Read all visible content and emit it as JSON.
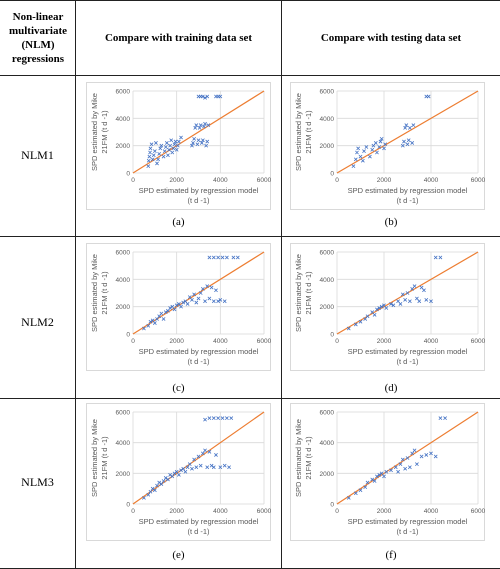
{
  "header": {
    "col1": "Non-linear multivariate (NLM) regressions",
    "col2": "Compare with training data set",
    "col3": "Compare with testing data set"
  },
  "rows": [
    {
      "label": "NLM1"
    },
    {
      "label": "NLM2"
    },
    {
      "label": "NLM3"
    }
  ],
  "colors": {
    "points": "#4472C4",
    "line": "#ED7D31",
    "grid": "#d9d9d9"
  },
  "chart_data": [
    {
      "id": "a",
      "type": "scatter",
      "caption": "(a)",
      "xlabel": "SPD estimated by regression model",
      "xunit": "(t d -1)",
      "ylabel": "SPD estimated by Mike",
      "ylabel2": "21FM (t d -1)",
      "xlim": [
        0,
        6000
      ],
      "ylim": [
        0,
        6000
      ],
      "xticks": [
        "0",
        "2000",
        "4000",
        "6000"
      ],
      "yticks": [
        "0",
        "2000",
        "4000",
        "6000"
      ],
      "reference_line": [
        [
          0,
          0
        ],
        [
          6000,
          6000
        ]
      ],
      "points": [
        [
          700,
          500
        ],
        [
          720,
          900
        ],
        [
          750,
          1200
        ],
        [
          780,
          1500
        ],
        [
          800,
          1800
        ],
        [
          850,
          2100
        ],
        [
          900,
          1000
        ],
        [
          950,
          1300
        ],
        [
          1000,
          1600
        ],
        [
          1050,
          2200
        ],
        [
          1100,
          700
        ],
        [
          1150,
          1000
        ],
        [
          1200,
          1400
        ],
        [
          1250,
          1800
        ],
        [
          1300,
          2000
        ],
        [
          1400,
          1200
        ],
        [
          1450,
          1600
        ],
        [
          1500,
          1900
        ],
        [
          1550,
          2200
        ],
        [
          1600,
          1300
        ],
        [
          1650,
          1700
        ],
        [
          1700,
          2000
        ],
        [
          1750,
          2400
        ],
        [
          1800,
          1500
        ],
        [
          1850,
          1800
        ],
        [
          1900,
          2100
        ],
        [
          1950,
          2300
        ],
        [
          2000,
          1700
        ],
        [
          2050,
          2000
        ],
        [
          2100,
          2300
        ],
        [
          2200,
          2600
        ],
        [
          2700,
          2000
        ],
        [
          2750,
          2200
        ],
        [
          2800,
          2500
        ],
        [
          2850,
          3300
        ],
        [
          2900,
          3500
        ],
        [
          2950,
          2100
        ],
        [
          3000,
          2400
        ],
        [
          3050,
          3300
        ],
        [
          3100,
          3500
        ],
        [
          3150,
          2200
        ],
        [
          3200,
          2400
        ],
        [
          3250,
          3400
        ],
        [
          3300,
          3600
        ],
        [
          3350,
          2000
        ],
        [
          3400,
          2300
        ],
        [
          3450,
          3500
        ],
        [
          3000,
          5600
        ],
        [
          3100,
          5600
        ],
        [
          3200,
          5600
        ],
        [
          3300,
          5500
        ],
        [
          3400,
          5600
        ],
        [
          3800,
          5600
        ],
        [
          3900,
          5600
        ],
        [
          4000,
          5600
        ]
      ]
    },
    {
      "id": "b",
      "type": "scatter",
      "caption": "(b)",
      "xlabel": "SPD estimated by regression model",
      "xunit": "(t d -1)",
      "ylabel": "SPD estimated by Mike",
      "ylabel2": "21FM (t d -1)",
      "xlim": [
        0,
        6000
      ],
      "ylim": [
        0,
        6000
      ],
      "xticks": [
        "0",
        "2000",
        "4000",
        "6000"
      ],
      "yticks": [
        "0",
        "2000",
        "4000",
        "6000"
      ],
      "reference_line": [
        [
          0,
          0
        ],
        [
          6000,
          6000
        ]
      ],
      "points": [
        [
          700,
          500
        ],
        [
          800,
          1000
        ],
        [
          850,
          1500
        ],
        [
          900,
          1800
        ],
        [
          1000,
          1200
        ],
        [
          1100,
          900
        ],
        [
          1150,
          1600
        ],
        [
          1250,
          1900
        ],
        [
          1400,
          1200
        ],
        [
          1500,
          1700
        ],
        [
          1550,
          2000
        ],
        [
          1650,
          2200
        ],
        [
          1700,
          1500
        ],
        [
          1800,
          1900
        ],
        [
          1850,
          2300
        ],
        [
          1900,
          2500
        ],
        [
          2000,
          1800
        ],
        [
          2050,
          2100
        ],
        [
          2800,
          2000
        ],
        [
          2850,
          2300
        ],
        [
          2900,
          3300
        ],
        [
          2950,
          3500
        ],
        [
          3000,
          2100
        ],
        [
          3050,
          2400
        ],
        [
          3100,
          3300
        ],
        [
          3200,
          2200
        ],
        [
          3250,
          3500
        ],
        [
          3800,
          5600
        ],
        [
          3900,
          5600
        ]
      ]
    },
    {
      "id": "c",
      "type": "scatter",
      "caption": "(c)",
      "xlabel": "SPD estimated by regression model",
      "xunit": "(t d -1)",
      "ylabel": "SPD estimated by Mike",
      "ylabel2": "21FM (t d -1)",
      "xlim": [
        0,
        6000
      ],
      "ylim": [
        0,
        6000
      ],
      "xticks": [
        "0",
        "2000",
        "4000",
        "6000"
      ],
      "yticks": [
        "0",
        "2000",
        "4000",
        "6000"
      ],
      "reference_line": [
        [
          0,
          0
        ],
        [
          6000,
          6000
        ]
      ],
      "points": [
        [
          500,
          400
        ],
        [
          700,
          600
        ],
        [
          800,
          900
        ],
        [
          900,
          1000
        ],
        [
          1000,
          800
        ],
        [
          1100,
          1100
        ],
        [
          1200,
          1300
        ],
        [
          1300,
          1500
        ],
        [
          1400,
          1100
        ],
        [
          1500,
          1600
        ],
        [
          1600,
          1700
        ],
        [
          1700,
          1900
        ],
        [
          1800,
          2000
        ],
        [
          1900,
          1800
        ],
        [
          2000,
          2100
        ],
        [
          2100,
          2200
        ],
        [
          2200,
          2000
        ],
        [
          2300,
          2300
        ],
        [
          2400,
          2400
        ],
        [
          2500,
          2200
        ],
        [
          2600,
          2700
        ],
        [
          2700,
          2500
        ],
        [
          2800,
          2900
        ],
        [
          2900,
          2300
        ],
        [
          3000,
          2600
        ],
        [
          3100,
          3000
        ],
        [
          3200,
          3300
        ],
        [
          3300,
          2400
        ],
        [
          3400,
          3500
        ],
        [
          3500,
          2600
        ],
        [
          3600,
          3400
        ],
        [
          3700,
          2400
        ],
        [
          3800,
          3200
        ],
        [
          3900,
          2400
        ],
        [
          4000,
          2500
        ],
        [
          4200,
          2400
        ],
        [
          3500,
          5600
        ],
        [
          3700,
          5600
        ],
        [
          3900,
          5600
        ],
        [
          4100,
          5600
        ],
        [
          4300,
          5600
        ],
        [
          4600,
          5600
        ],
        [
          4800,
          5600
        ]
      ]
    },
    {
      "id": "d",
      "type": "scatter",
      "caption": "(d)",
      "xlabel": "SPD estimated by regression model",
      "xunit": "(t d -1)",
      "ylabel": "SPD estimated by Mike",
      "ylabel2": "21FM (t d -1)",
      "xlim": [
        0,
        6000
      ],
      "ylim": [
        0,
        6000
      ],
      "xticks": [
        "0",
        "2000",
        "4000",
        "6000"
      ],
      "yticks": [
        "0",
        "2000",
        "4000",
        "6000"
      ],
      "reference_line": [
        [
          0,
          0
        ],
        [
          6000,
          6000
        ]
      ],
      "points": [
        [
          500,
          400
        ],
        [
          800,
          700
        ],
        [
          1000,
          900
        ],
        [
          1200,
          1100
        ],
        [
          1300,
          1300
        ],
        [
          1500,
          1600
        ],
        [
          1600,
          1400
        ],
        [
          1700,
          1800
        ],
        [
          1800,
          1900
        ],
        [
          1900,
          2000
        ],
        [
          2000,
          2100
        ],
        [
          2100,
          1900
        ],
        [
          2300,
          2200
        ],
        [
          2400,
          2100
        ],
        [
          2600,
          2400
        ],
        [
          2700,
          2200
        ],
        [
          2800,
          2900
        ],
        [
          2900,
          2500
        ],
        [
          3000,
          3000
        ],
        [
          3100,
          2400
        ],
        [
          3200,
          3300
        ],
        [
          3300,
          3500
        ],
        [
          3400,
          2600
        ],
        [
          3500,
          2400
        ],
        [
          3600,
          3400
        ],
        [
          3700,
          3200
        ],
        [
          3800,
          2500
        ],
        [
          4000,
          2400
        ],
        [
          4200,
          5600
        ],
        [
          4400,
          5600
        ]
      ]
    },
    {
      "id": "e",
      "type": "scatter",
      "caption": "(e)",
      "xlabel": "SPD estimated by regression model",
      "xunit": "(t d -1)",
      "ylabel": "SPD estimated by Mike",
      "ylabel2": "21FM (t d -1)",
      "xlim": [
        0,
        6000
      ],
      "ylim": [
        0,
        6000
      ],
      "xticks": [
        "0",
        "2000",
        "4000",
        "6000"
      ],
      "yticks": [
        "0",
        "2000",
        "4000",
        "6000"
      ],
      "reference_line": [
        [
          0,
          0
        ],
        [
          6000,
          6000
        ]
      ],
      "points": [
        [
          500,
          400
        ],
        [
          700,
          600
        ],
        [
          800,
          800
        ],
        [
          900,
          1000
        ],
        [
          1000,
          900
        ],
        [
          1100,
          1200
        ],
        [
          1200,
          1400
        ],
        [
          1300,
          1300
        ],
        [
          1400,
          1500
        ],
        [
          1500,
          1700
        ],
        [
          1600,
          1600
        ],
        [
          1700,
          1900
        ],
        [
          1800,
          1800
        ],
        [
          1900,
          2000
        ],
        [
          2000,
          2100
        ],
        [
          2100,
          1900
        ],
        [
          2200,
          2200
        ],
        [
          2300,
          2300
        ],
        [
          2400,
          2100
        ],
        [
          2500,
          2400
        ],
        [
          2600,
          2600
        ],
        [
          2700,
          2300
        ],
        [
          2800,
          2900
        ],
        [
          2900,
          2400
        ],
        [
          3000,
          3100
        ],
        [
          3100,
          2500
        ],
        [
          3200,
          3300
        ],
        [
          3300,
          3500
        ],
        [
          3400,
          2400
        ],
        [
          3500,
          3400
        ],
        [
          3600,
          2500
        ],
        [
          3700,
          2400
        ],
        [
          3800,
          3200
        ],
        [
          4000,
          2400
        ],
        [
          4200,
          2500
        ],
        [
          4400,
          2400
        ],
        [
          3300,
          5500
        ],
        [
          3500,
          5600
        ],
        [
          3700,
          5600
        ],
        [
          3900,
          5600
        ],
        [
          4100,
          5600
        ],
        [
          4300,
          5600
        ],
        [
          4500,
          5600
        ]
      ]
    },
    {
      "id": "f",
      "type": "scatter",
      "caption": "(f)",
      "xlabel": "SPD estimated by regression model",
      "xunit": "(t d -1)",
      "ylabel": "SPD estimated by Mike",
      "ylabel2": "21FM (t d -1)",
      "xlim": [
        0,
        6000
      ],
      "ylim": [
        0,
        6000
      ],
      "xticks": [
        "0",
        "2000",
        "4000",
        "6000"
      ],
      "yticks": [
        "0",
        "2000",
        "4000",
        "6000"
      ],
      "reference_line": [
        [
          0,
          0
        ],
        [
          6000,
          6000
        ]
      ],
      "points": [
        [
          500,
          400
        ],
        [
          800,
          700
        ],
        [
          1000,
          900
        ],
        [
          1200,
          1100
        ],
        [
          1300,
          1400
        ],
        [
          1500,
          1600
        ],
        [
          1600,
          1500
        ],
        [
          1700,
          1800
        ],
        [
          1800,
          1900
        ],
        [
          1900,
          2000
        ],
        [
          2000,
          1800
        ],
        [
          2100,
          2100
        ],
        [
          2300,
          2200
        ],
        [
          2500,
          2400
        ],
        [
          2600,
          2100
        ],
        [
          2700,
          2600
        ],
        [
          2800,
          2900
        ],
        [
          2900,
          2300
        ],
        [
          3000,
          3000
        ],
        [
          3100,
          2400
        ],
        [
          3200,
          3300
        ],
        [
          3300,
          3500
        ],
        [
          3400,
          2600
        ],
        [
          3600,
          3100
        ],
        [
          3800,
          3200
        ],
        [
          4000,
          3300
        ],
        [
          4200,
          3100
        ],
        [
          4400,
          5600
        ],
        [
          4600,
          5600
        ]
      ]
    }
  ]
}
